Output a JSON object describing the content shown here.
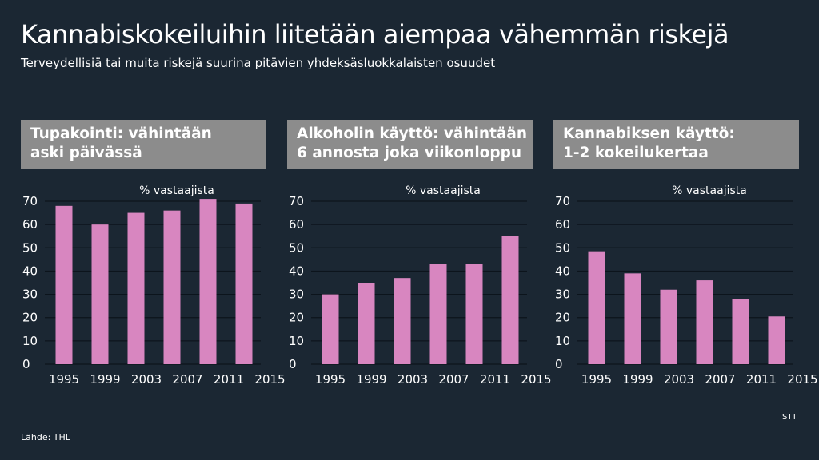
{
  "title": "Kannabiskokeiluihin liitetään aiempaa vähemmän riskejä",
  "subtitle": "Terveydellisiä tai muita riskejä suurina pitävien yhdeksäsluokkalaisten osuudet",
  "source": "Lähde: THL",
  "brand": "STT",
  "colors": {
    "background": "#1b2733",
    "header": "#8c8c8c",
    "bar": "#d886c0"
  },
  "chart_data": [
    {
      "type": "bar",
      "title_lines": [
        "Tupakointi: vähintään",
        "aski päivässä"
      ],
      "ylabel": "% vastaajista",
      "categories": [
        "1995",
        "1999",
        "2003",
        "2007",
        "2011",
        "2015"
      ],
      "x_ticks": [
        "1995",
        "1999",
        "2003",
        "2007",
        "2011",
        "2015"
      ],
      "values": [
        68,
        60,
        65,
        66,
        71,
        69
      ],
      "ylim": [
        0,
        70
      ],
      "y_ticks": [
        0,
        10,
        20,
        30,
        40,
        50,
        60,
        70
      ],
      "grid": true
    },
    {
      "type": "bar",
      "title_lines": [
        "Alkoholin käyttö: vähintään",
        "6 annosta joka viikonloppu"
      ],
      "ylabel": "% vastaajista",
      "categories": [
        "1995",
        "1999",
        "2003",
        "2007",
        "2011",
        "2015"
      ],
      "x_ticks": [
        "1995",
        "1999",
        "2003",
        "2007",
        "2011",
        "2015"
      ],
      "values": [
        30,
        35,
        37,
        43,
        43,
        55
      ],
      "ylim": [
        0,
        70
      ],
      "y_ticks": [
        0,
        10,
        20,
        30,
        40,
        50,
        60,
        70
      ],
      "grid": true
    },
    {
      "type": "bar",
      "title_lines": [
        "Kannabiksen käyttö:",
        "1-2 kokeilukertaa"
      ],
      "ylabel": "% vastaajista",
      "categories": [
        "1995",
        "1999",
        "2003",
        "2007",
        "2011",
        "2015"
      ],
      "x_ticks": [
        "1995",
        "1999",
        "2003",
        "2007",
        "2011",
        "2015"
      ],
      "values": [
        48.5,
        39,
        32,
        36,
        28,
        20.5
      ],
      "ylim": [
        0,
        70
      ],
      "y_ticks": [
        0,
        10,
        20,
        30,
        40,
        50,
        60,
        70
      ],
      "grid": true
    }
  ]
}
